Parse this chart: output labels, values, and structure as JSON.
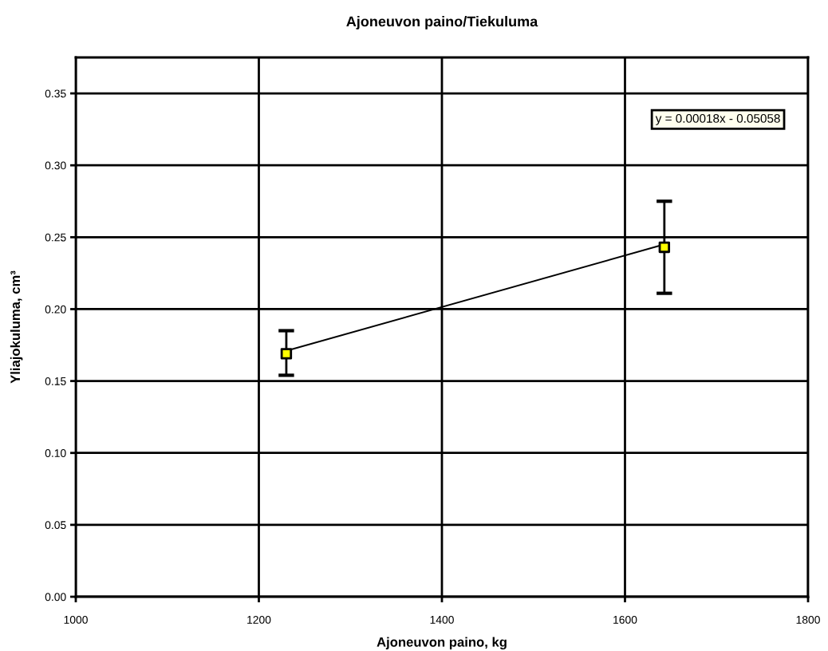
{
  "chart_data": {
    "type": "scatter",
    "title": "Ajoneuvon paino/Tiekuluma",
    "xlabel": "Ajoneuvon paino, kg",
    "ylabel": "Yliajokuluma, cm³",
    "xlim": [
      1000,
      1800
    ],
    "xticks": [
      1000,
      1200,
      1400,
      1600,
      1800
    ],
    "ylim": [
      0,
      0.375
    ],
    "yticks": [
      {
        "value": 0,
        "label": "0.00"
      },
      {
        "value": 0.05,
        "label": "0.05"
      },
      {
        "value": 0.1,
        "label": "0.10"
      },
      {
        "value": 0.15,
        "label": "0.15"
      },
      {
        "value": 0.2,
        "label": "0.20"
      },
      {
        "value": 0.25,
        "label": "0.25"
      },
      {
        "value": 0.3,
        "label": "0.30"
      },
      {
        "value": 0.35,
        "label": "0.35"
      }
    ],
    "grid": true,
    "legend": false,
    "x": [
      1230,
      1643
    ],
    "series": [
      {
        "type": "line",
        "color": "#000000",
        "values": [
          0.171,
          0.245
        ],
        "marker": "none"
      },
      {
        "type": "scatter",
        "color": "#ffff00",
        "values": [
          0.169,
          0.243
        ],
        "errors": [
          [
            0.154,
            0.185
          ],
          [
            0.211,
            0.275
          ]
        ],
        "marker": "square"
      }
    ],
    "annotations": [
      "y = 0.00018x - 0.05058"
    ]
  }
}
